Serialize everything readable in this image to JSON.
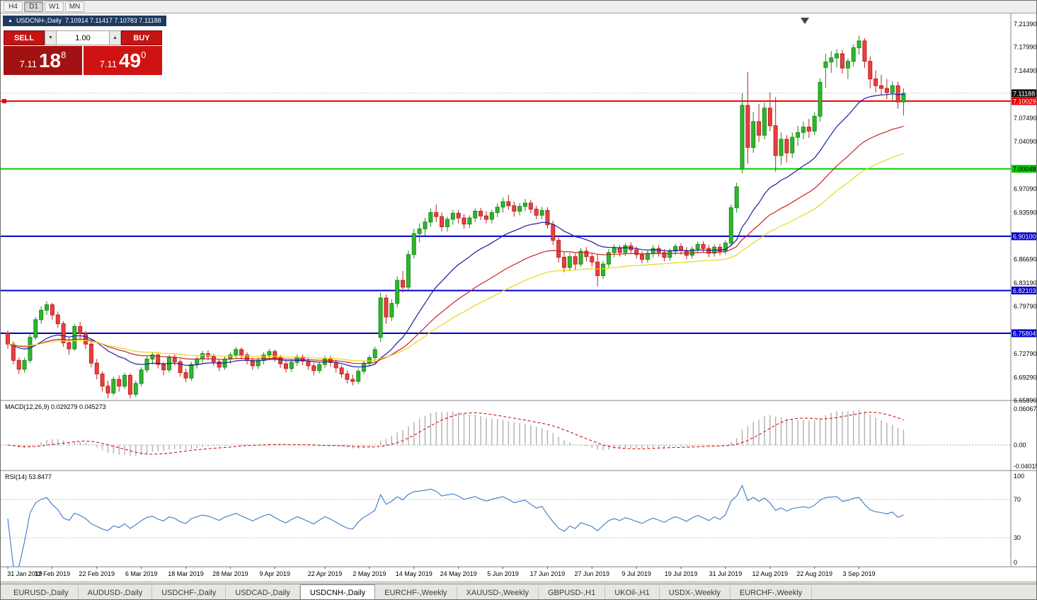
{
  "window": {
    "toolbar": {
      "timeframes": [
        "H4",
        "D1",
        "W1",
        "MN"
      ],
      "active_timeframe": "D1"
    }
  },
  "chart": {
    "title": {
      "expand_icon": "▲",
      "symbol": "USDCNH-,Daily",
      "ohlc": "7.10914 7.11417 7.10783 7.11188"
    },
    "trade_panel": {
      "sell_label": "SELL",
      "buy_label": "BUY",
      "volume": "1.00",
      "spin_down_icon": "▼",
      "spin_up_icon": "▲",
      "sell_price": {
        "prefix": "7.11",
        "big": "18",
        "sup": "8"
      },
      "buy_price": {
        "prefix": "7.11",
        "big": "49",
        "sup": "0"
      },
      "sell_bg": "#a31212",
      "buy_bg": "#cf1313",
      "button_bg": "#c41414"
    },
    "price_axis": {
      "ticks": [
        "7.21390",
        "7.17990",
        "7.14490",
        "7.07490",
        "7.04090",
        "6.97090",
        "6.93590",
        "6.86690",
        "6.83190",
        "6.79790",
        "6.72790",
        "6.69290",
        "6.65890"
      ],
      "tags": [
        {
          "text": "7.11188",
          "bg": "#111111",
          "fg": "#ffffff"
        },
        {
          "text": "7.10029",
          "bg": "#ee0000",
          "fg": "#ffffff"
        },
        {
          "text": "7.00048",
          "bg": "#00cc00",
          "fg": "#000000"
        },
        {
          "text": "6.90100",
          "bg": "#0000cc",
          "fg": "#ffffff"
        },
        {
          "text": "6.82103",
          "bg": "#0000cc",
          "fg": "#ffffff"
        },
        {
          "text": "6.75804",
          "bg": "#0000cc",
          "fg": "#ffffff"
        }
      ]
    },
    "hlines": [
      {
        "price": 7.10029,
        "color": "#ee0000"
      },
      {
        "price": 7.00048,
        "color": "#00cc00"
      },
      {
        "price": 6.901,
        "color": "#0000cc"
      },
      {
        "price": 6.82103,
        "color": "#0000cc"
      },
      {
        "price": 6.75804,
        "color": "#0000cc"
      }
    ],
    "bid_line": {
      "price": 7.11188,
      "color": "#c8c8c8"
    },
    "candle_colors": {
      "up_fill": "#2db82d",
      "up_border": "#1d8a1d",
      "down_fill": "#e84040",
      "down_border": "#c02020"
    }
  },
  "chart_data": {
    "type": "candlestick",
    "symbol": "USDCNH",
    "timeframe": "Daily",
    "price_range": [
      6.6589,
      7.2139
    ],
    "moving_averages": [
      {
        "period": 20,
        "color": "#1c1c9c"
      },
      {
        "period": 40,
        "color": "#cc2222"
      },
      {
        "period": 60,
        "color": "#e6d814"
      }
    ],
    "date_labels": [
      [
        "31 Jan 2019",
        0
      ],
      [
        "12 Feb 2019",
        8
      ],
      [
        "22 Feb 2019",
        16
      ],
      [
        "6 Mar 2019",
        24
      ],
      [
        "18 Mar 2019",
        32
      ],
      [
        "28 Mar 2019",
        40
      ],
      [
        "9 Apr 2019",
        48
      ],
      [
        "22 Apr 2019",
        57
      ],
      [
        "2 May 2019",
        65
      ],
      [
        "14 May 2019",
        73
      ],
      [
        "24 May 2019",
        81
      ],
      [
        "5 Jun 2019",
        89
      ],
      [
        "17 Jun 2019",
        97
      ],
      [
        "27 Jun 2019",
        105
      ],
      [
        "9 Jul 2019",
        113
      ],
      [
        "19 Jul 2019",
        121
      ],
      [
        "31 Jul 2019",
        129
      ],
      [
        "12 Aug 2019",
        137
      ],
      [
        "22 Aug 2019",
        145
      ],
      [
        "3 Sep 2019",
        153
      ]
    ],
    "candles": [
      [
        6.758,
        6.762,
        6.735,
        6.742
      ],
      [
        6.742,
        6.746,
        6.712,
        6.718
      ],
      [
        6.718,
        6.722,
        6.698,
        6.705
      ],
      [
        6.705,
        6.722,
        6.7,
        6.718
      ],
      [
        6.718,
        6.758,
        6.714,
        6.752
      ],
      [
        6.752,
        6.782,
        6.748,
        6.778
      ],
      [
        6.778,
        6.798,
        6.772,
        6.792
      ],
      [
        6.792,
        6.805,
        6.785,
        6.8
      ],
      [
        6.8,
        6.803,
        6.778,
        6.785
      ],
      [
        6.785,
        6.79,
        6.766,
        6.772
      ],
      [
        6.772,
        6.776,
        6.738,
        6.744
      ],
      [
        6.744,
        6.752,
        6.726,
        6.735
      ],
      [
        6.735,
        6.772,
        6.732,
        6.768
      ],
      [
        6.768,
        6.775,
        6.75,
        6.758
      ],
      [
        6.758,
        6.762,
        6.735,
        6.742
      ],
      [
        6.742,
        6.746,
        6.708,
        6.714
      ],
      [
        6.714,
        6.72,
        6.69,
        6.698
      ],
      [
        6.698,
        6.702,
        6.672,
        6.68
      ],
      [
        6.68,
        6.688,
        6.662,
        6.67
      ],
      [
        6.67,
        6.694,
        6.666,
        6.69
      ],
      [
        6.69,
        6.696,
        6.672,
        6.68
      ],
      [
        6.68,
        6.7,
        6.676,
        6.696
      ],
      [
        6.696,
        6.699,
        6.662,
        6.668
      ],
      [
        6.668,
        6.688,
        6.664,
        6.684
      ],
      [
        6.684,
        6.708,
        6.68,
        6.704
      ],
      [
        6.704,
        6.724,
        6.7,
        6.72
      ],
      [
        6.72,
        6.73,
        6.712,
        6.726
      ],
      [
        6.726,
        6.73,
        6.706,
        6.712
      ],
      [
        6.712,
        6.716,
        6.696,
        6.704
      ],
      [
        6.704,
        6.726,
        6.7,
        6.722
      ],
      [
        6.722,
        6.727,
        6.71,
        6.716
      ],
      [
        6.716,
        6.72,
        6.694,
        6.7
      ],
      [
        6.7,
        6.706,
        6.686,
        6.692
      ],
      [
        6.692,
        6.716,
        6.688,
        6.712
      ],
      [
        6.712,
        6.724,
        6.706,
        6.72
      ],
      [
        6.72,
        6.732,
        6.714,
        6.728
      ],
      [
        6.728,
        6.733,
        6.718,
        6.724
      ],
      [
        6.724,
        6.728,
        6.71,
        6.716
      ],
      [
        6.716,
        6.72,
        6.702,
        6.708
      ],
      [
        6.708,
        6.724,
        6.704,
        6.72
      ],
      [
        6.72,
        6.73,
        6.713,
        6.726
      ],
      [
        6.726,
        6.738,
        6.72,
        6.734
      ],
      [
        6.734,
        6.737,
        6.72,
        6.726
      ],
      [
        6.726,
        6.73,
        6.712,
        6.718
      ],
      [
        6.718,
        6.722,
        6.704,
        6.71
      ],
      [
        6.71,
        6.722,
        6.705,
        6.718
      ],
      [
        6.718,
        6.73,
        6.712,
        6.726
      ],
      [
        6.726,
        6.735,
        6.719,
        6.731
      ],
      [
        6.731,
        6.734,
        6.716,
        6.722
      ],
      [
        6.722,
        6.726,
        6.707,
        6.713
      ],
      [
        6.713,
        6.718,
        6.7,
        6.706
      ],
      [
        6.706,
        6.719,
        6.701,
        6.715
      ],
      [
        6.715,
        6.727,
        6.71,
        6.723
      ],
      [
        6.723,
        6.727,
        6.711,
        6.717
      ],
      [
        6.717,
        6.721,
        6.704,
        6.71
      ],
      [
        6.71,
        6.714,
        6.696,
        6.703
      ],
      [
        6.703,
        6.716,
        6.699,
        6.712
      ],
      [
        6.712,
        6.725,
        6.707,
        6.721
      ],
      [
        6.721,
        6.725,
        6.709,
        6.715
      ],
      [
        6.715,
        6.719,
        6.7,
        6.707
      ],
      [
        6.707,
        6.711,
        6.692,
        6.698
      ],
      [
        6.698,
        6.703,
        6.684,
        6.69
      ],
      [
        6.69,
        6.697,
        6.681,
        6.687
      ],
      [
        6.687,
        6.706,
        6.683,
        6.702
      ],
      [
        6.702,
        6.718,
        6.698,
        6.714
      ],
      [
        6.714,
        6.726,
        6.709,
        6.722
      ],
      [
        6.722,
        6.738,
        6.716,
        6.734
      ],
      [
        6.752,
        6.818,
        6.745,
        6.81
      ],
      [
        6.81,
        6.815,
        6.772,
        6.782
      ],
      [
        6.782,
        6.808,
        6.776,
        6.802
      ],
      [
        6.802,
        6.842,
        6.796,
        6.836
      ],
      [
        6.836,
        6.85,
        6.818,
        6.826
      ],
      [
        6.826,
        6.88,
        6.822,
        6.874
      ],
      [
        6.874,
        6.912,
        6.868,
        6.905
      ],
      [
        6.905,
        6.92,
        6.892,
        6.912
      ],
      [
        6.912,
        6.928,
        6.902,
        6.922
      ],
      [
        6.922,
        6.942,
        6.915,
        6.936
      ],
      [
        6.936,
        6.948,
        6.922,
        6.93
      ],
      [
        6.93,
        6.936,
        6.908,
        6.915
      ],
      [
        6.915,
        6.93,
        6.908,
        6.926
      ],
      [
        6.926,
        6.94,
        6.918,
        6.935
      ],
      [
        6.935,
        6.94,
        6.92,
        6.928
      ],
      [
        6.928,
        6.934,
        6.912,
        6.919
      ],
      [
        6.919,
        6.932,
        6.913,
        6.928
      ],
      [
        6.928,
        6.942,
        6.922,
        6.938
      ],
      [
        6.938,
        6.943,
        6.925,
        6.931
      ],
      [
        6.931,
        6.938,
        6.92,
        6.926
      ],
      [
        6.926,
        6.94,
        6.92,
        6.936
      ],
      [
        6.936,
        6.949,
        6.929,
        6.944
      ],
      [
        6.944,
        6.958,
        6.936,
        6.952
      ],
      [
        6.952,
        6.962,
        6.94,
        6.946
      ],
      [
        6.946,
        6.952,
        6.93,
        6.938
      ],
      [
        6.938,
        6.95,
        6.932,
        6.945
      ],
      [
        6.945,
        6.956,
        6.938,
        6.95
      ],
      [
        6.95,
        6.955,
        6.935,
        6.941
      ],
      [
        6.941,
        6.946,
        6.926,
        6.932
      ],
      [
        6.932,
        6.944,
        6.926,
        6.939
      ],
      [
        6.939,
        6.944,
        6.912,
        6.918
      ],
      [
        6.918,
        6.924,
        6.888,
        6.895
      ],
      [
        6.895,
        6.902,
        6.862,
        6.87
      ],
      [
        6.87,
        6.878,
        6.848,
        6.855
      ],
      [
        6.855,
        6.876,
        6.85,
        6.871
      ],
      [
        6.871,
        6.876,
        6.852,
        6.86
      ],
      [
        6.86,
        6.884,
        6.856,
        6.879
      ],
      [
        6.879,
        6.885,
        6.864,
        6.871
      ],
      [
        6.871,
        6.877,
        6.856,
        6.863
      ],
      [
        6.863,
        6.874,
        6.827,
        6.843
      ],
      [
        6.843,
        6.865,
        6.838,
        6.86
      ],
      [
        6.86,
        6.882,
        6.855,
        6.877
      ],
      [
        6.877,
        6.889,
        6.87,
        6.884
      ],
      [
        6.884,
        6.888,
        6.871,
        6.877
      ],
      [
        6.877,
        6.891,
        6.872,
        6.887
      ],
      [
        6.887,
        6.892,
        6.875,
        6.881
      ],
      [
        6.881,
        6.886,
        6.868,
        6.874
      ],
      [
        6.874,
        6.879,
        6.861,
        6.867
      ],
      [
        6.867,
        6.88,
        6.862,
        6.876
      ],
      [
        6.876,
        6.888,
        6.87,
        6.883
      ],
      [
        6.883,
        6.888,
        6.871,
        6.877
      ],
      [
        6.877,
        6.882,
        6.864,
        6.87
      ],
      [
        6.87,
        6.883,
        6.865,
        6.879
      ],
      [
        6.879,
        6.89,
        6.873,
        6.886
      ],
      [
        6.886,
        6.891,
        6.874,
        6.88
      ],
      [
        6.88,
        6.885,
        6.867,
        6.873
      ],
      [
        6.873,
        6.886,
        6.868,
        6.882
      ],
      [
        6.882,
        6.893,
        6.876,
        6.889
      ],
      [
        6.889,
        6.894,
        6.877,
        6.883
      ],
      [
        6.883,
        6.888,
        6.87,
        6.876
      ],
      [
        6.876,
        6.889,
        6.871,
        6.885
      ],
      [
        6.885,
        6.89,
        6.873,
        6.879
      ],
      [
        6.879,
        6.895,
        6.874,
        6.891
      ],
      [
        6.891,
        6.948,
        6.886,
        6.943
      ],
      [
        6.943,
        6.98,
        6.936,
        6.974
      ],
      [
        7.0,
        7.112,
        6.994,
        7.094
      ],
      [
        7.094,
        7.143,
        7.008,
        7.032
      ],
      [
        7.032,
        7.084,
        7.024,
        7.07
      ],
      [
        7.07,
        7.096,
        7.04,
        7.05
      ],
      [
        7.05,
        7.098,
        7.044,
        7.09
      ],
      [
        7.09,
        7.113,
        7.056,
        7.064
      ],
      [
        7.064,
        7.106,
        6.996,
        7.02
      ],
      [
        7.02,
        7.054,
        7.006,
        7.044
      ],
      [
        7.044,
        7.05,
        7.01,
        7.024
      ],
      [
        7.024,
        7.054,
        7.016,
        7.047
      ],
      [
        7.047,
        7.064,
        7.034,
        7.054
      ],
      [
        7.054,
        7.07,
        7.044,
        7.062
      ],
      [
        7.062,
        7.074,
        7.046,
        7.056
      ],
      [
        7.056,
        7.084,
        7.05,
        7.078
      ],
      [
        7.078,
        7.134,
        7.07,
        7.128
      ],
      [
        7.15,
        7.17,
        7.12,
        7.158
      ],
      [
        7.158,
        7.174,
        7.142,
        7.164
      ],
      [
        7.164,
        7.177,
        7.15,
        7.17
      ],
      [
        7.17,
        7.176,
        7.141,
        7.149
      ],
      [
        7.149,
        7.163,
        7.133,
        7.159
      ],
      [
        7.159,
        7.184,
        7.151,
        7.179
      ],
      [
        7.179,
        7.197,
        7.169,
        7.189
      ],
      [
        7.189,
        7.193,
        7.149,
        7.159
      ],
      [
        7.159,
        7.166,
        7.119,
        7.133
      ],
      [
        7.133,
        7.146,
        7.113,
        7.123
      ],
      [
        7.123,
        7.139,
        7.109,
        7.119
      ],
      [
        7.119,
        7.133,
        7.103,
        7.113
      ],
      [
        7.113,
        7.129,
        7.099,
        7.123
      ],
      [
        7.123,
        7.129,
        7.089,
        7.099
      ],
      [
        7.099,
        7.119,
        7.079,
        7.112
      ]
    ]
  },
  "macd": {
    "label": "MACD(12,26,9) 0.029279 0.045273",
    "params": [
      12,
      26,
      9
    ],
    "axis": [
      "0.060674",
      "0.00",
      "-0.040152"
    ],
    "bar_color": "#b0b0b0",
    "signal_color": "#cc0000"
  },
  "rsi": {
    "label": "RSI(14) 53.8477",
    "period": 14,
    "axis": [
      "100",
      "70",
      "30",
      "0"
    ],
    "levels": [
      70,
      30
    ],
    "line_color": "#3c78c8"
  },
  "tabbar": {
    "tabs": [
      "EURUSD-,Daily",
      "AUDUSD-,Daily",
      "USDCHF-,Daily",
      "USDCAD-,Daily",
      "USDCNH-,Daily",
      "EURCHF-,Weekly",
      "XAUUSD-,Weekly",
      "GBPUSD-,H1",
      "UKOil-,H1",
      "USDX-,Weekly",
      "EURCHF-,Weekly"
    ],
    "active_index": 4
  }
}
